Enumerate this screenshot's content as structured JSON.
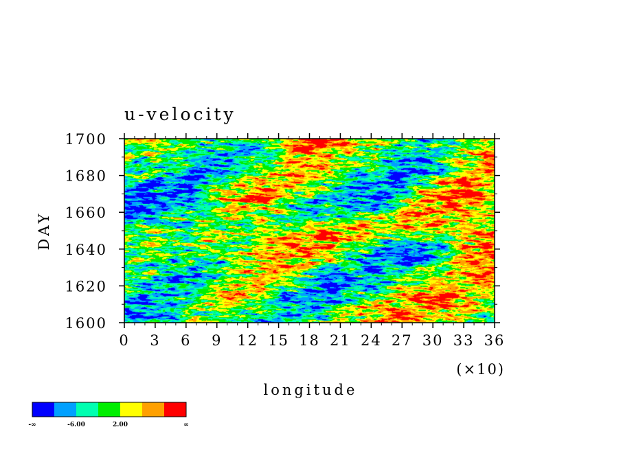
{
  "chart_data": {
    "type": "heatmap",
    "title": "u-velocity",
    "xlabel": "longitude",
    "ylabel": "DAY",
    "x_multiplier_label": "(×10)",
    "xlim": [
      0,
      360
    ],
    "ylim": [
      1600,
      1700
    ],
    "x_ticks": [
      0,
      30,
      60,
      90,
      120,
      150,
      180,
      210,
      240,
      270,
      300,
      330,
      360
    ],
    "x_tick_labels": [
      "0",
      "3",
      "6",
      "9",
      "12",
      "15",
      "18",
      "21",
      "24",
      "27",
      "30",
      "33",
      "36"
    ],
    "y_ticks": [
      1600,
      1620,
      1640,
      1660,
      1680,
      1700
    ],
    "y_tick_labels": [
      "1600",
      "1620",
      "1640",
      "1660",
      "1680",
      "1700"
    ],
    "grid": false,
    "colorbar": {
      "placement": "bottom-left",
      "colors": [
        "#0000ff",
        "#00a0ff",
        "#00ffb0",
        "#00ee00",
        "#ffff00",
        "#ffa000",
        "#ff0000"
      ],
      "labels": [
        "-∞",
        "-6.00",
        "2.00",
        "∞"
      ]
    },
    "pattern": {
      "description_of_field": "streaks tilted toward later days at larger longitude",
      "westward_anomaly_bands": [
        {
          "start_longitude": 0,
          "start_day": 1605,
          "end_longitude": 80,
          "end_day": 1625
        },
        {
          "start_longitude": 0,
          "start_day": 1660,
          "end_longitude": 120,
          "end_day": 1690
        },
        {
          "start_longitude": 150,
          "start_day": 1605,
          "end_longitude": 280,
          "end_day": 1640
        },
        {
          "start_longitude": 200,
          "start_day": 1660,
          "end_longitude": 300,
          "end_day": 1690
        }
      ],
      "eastward_anomaly_bands": [
        {
          "start_longitude": 100,
          "start_day": 1615,
          "end_longitude": 200,
          "end_day": 1650
        },
        {
          "start_longitude": 120,
          "start_day": 1670,
          "end_longitude": 190,
          "end_day": 1700
        },
        {
          "start_longitude": 270,
          "start_day": 1600,
          "end_longitude": 360,
          "end_day": 1640
        },
        {
          "start_longitude": 290,
          "start_day": 1655,
          "end_longitude": 360,
          "end_day": 1690
        }
      ]
    }
  }
}
